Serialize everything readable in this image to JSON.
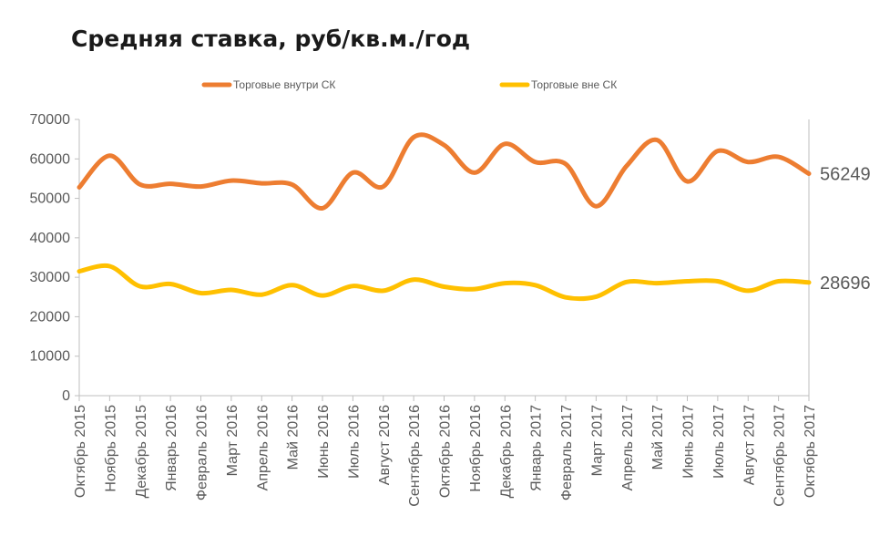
{
  "chart_data": {
    "type": "line",
    "title": "Средняя ставка, руб/кв.м./год",
    "xlabel": "",
    "ylabel": "",
    "ylim": [
      0,
      70000
    ],
    "yticks": [
      0,
      10000,
      20000,
      30000,
      40000,
      50000,
      60000,
      70000
    ],
    "grid": false,
    "legend_position": "top",
    "categories": [
      "Октябрь 2015",
      "Ноябрь 2015",
      "Декабрь 2015",
      "Январь 2016",
      "Февраль 2016",
      "Март 2016",
      "Апрель 2016",
      "Май 2016",
      "Июнь 2016",
      "Июль 2016",
      "Август 2016",
      "Сентябрь 2016",
      "Октябрь 2016",
      "Ноябрь 2016",
      "Декабрь 2016",
      "Январь 2017",
      "Февраль 2017",
      "Март 2017",
      "Апрель 2017",
      "Май 2017",
      "Июнь 2017",
      "Июль 2017",
      "Август 2017",
      "Сентябрь 2017",
      "Октябрь 2017"
    ],
    "series": [
      {
        "name": "Торговые внутри СК",
        "color": "#ED7D31",
        "values": [
          52800,
          60800,
          53500,
          53700,
          53000,
          54500,
          53800,
          53500,
          47500,
          56500,
          53000,
          65500,
          63500,
          56500,
          63800,
          59200,
          58700,
          48000,
          58200,
          64800,
          54300,
          62000,
          59200,
          60500,
          56249
        ],
        "end_label": "56249"
      },
      {
        "name": "Торговые вне СК",
        "color": "#FFC000",
        "values": [
          31500,
          32800,
          27700,
          28300,
          26000,
          26800,
          25600,
          28000,
          25400,
          27800,
          26600,
          29400,
          27600,
          27000,
          28500,
          28000,
          24900,
          25100,
          28800,
          28500,
          29000,
          29000,
          26600,
          29000,
          28696
        ],
        "end_label": "28696"
      }
    ]
  }
}
